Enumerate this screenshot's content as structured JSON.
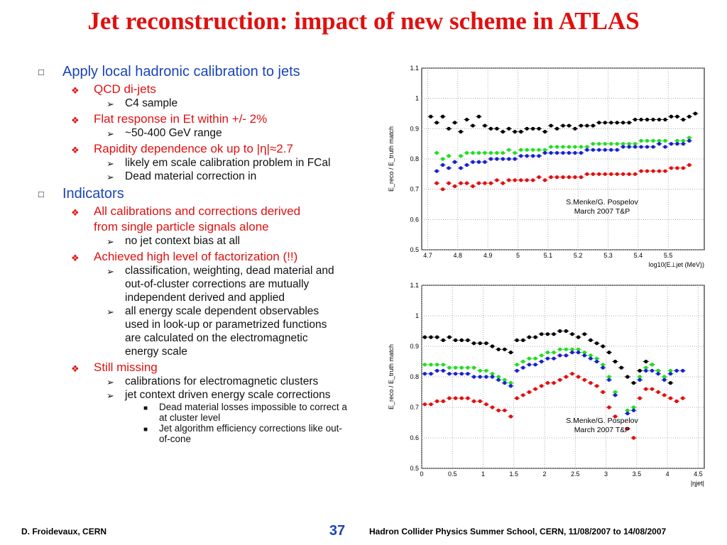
{
  "title": "Jet reconstruction: impact of new scheme in ATLAS",
  "bullets": [
    {
      "level": 1,
      "text": "Apply local hadronic calibration to jets"
    },
    {
      "level": 2,
      "text": "QCD di-jets"
    },
    {
      "level": 3,
      "text": "C4 sample"
    },
    {
      "level": 2,
      "text": "Flat response in Et  within +/- 2%"
    },
    {
      "level": 3,
      "text": "~50-400 GeV range"
    },
    {
      "level": 2,
      "text": "Rapidity dependence ok up to |η|≈2.7"
    },
    {
      "level": 3,
      "text": "likely em scale calibration problem in FCal"
    },
    {
      "level": 3,
      "text": "Dead material correction in"
    },
    {
      "level": 1,
      "text": "Indicators"
    },
    {
      "level": 2,
      "text": "All calibrations and corrections derived"
    },
    {
      "level": 2,
      "text": "from single particle signals alone",
      "cont": true
    },
    {
      "level": 3,
      "text": "no jet context bias at all"
    },
    {
      "level": 2,
      "text": "Achieved high level of factorization (!!)"
    },
    {
      "level": 3,
      "text": "classification, weighting, dead material and"
    },
    {
      "level": 3,
      "text": "out-of-cluster corrections are mutually",
      "cont": true
    },
    {
      "level": 3,
      "text": "independent derived and applied",
      "cont": true
    },
    {
      "level": 3,
      "text": "all energy scale dependent observables"
    },
    {
      "level": 3,
      "text": "used in look-up or parametrized functions",
      "cont": true
    },
    {
      "level": 3,
      "text": "are calculated on the electromagnetic",
      "cont": true
    },
    {
      "level": 3,
      "text": "energy scale",
      "cont": true
    },
    {
      "level": 2,
      "text": "Still missing"
    },
    {
      "level": 3,
      "text": "calibrations for electromagnetic clusters"
    },
    {
      "level": 3,
      "text": "jet context driven energy scale corrections"
    },
    {
      "level": 4,
      "text": "Dead material losses impossible to correct a"
    },
    {
      "level": 4,
      "text": "at cluster level",
      "cont": true
    },
    {
      "level": 4,
      "text": "Jet algorithm efficiency corrections like out-"
    },
    {
      "level": 4,
      "text": "of-cone",
      "cont": true
    }
  ],
  "footer": {
    "left": "D. Froidevaux, CERN",
    "page": "37",
    "right": "Hadron Collider Physics Summer School, CERN, 11/08/2007 to 14/08/2007"
  },
  "chart_data": [
    {
      "type": "scatter",
      "ylabel": "E_reco / E_truth match",
      "xlabel": "log10(E⊥jet (MeV))",
      "annotation": [
        "S.Menke/G. Pospelov",
        "March 2007 T&P"
      ],
      "xlim": [
        4.68,
        5.62
      ],
      "ylim": [
        0.5,
        1.1
      ],
      "xticks": [
        4.7,
        4.8,
        4.9,
        5,
        5.1,
        5.2,
        5.3,
        5.4,
        5.5
      ],
      "yticks": [
        0.5,
        0.6,
        0.7,
        0.8,
        0.9,
        1,
        1.1
      ],
      "grid": true,
      "colors": [
        "#000000",
        "#22dd22",
        "#1a22cc",
        "#e01010"
      ],
      "x": [
        4.71,
        4.73,
        4.75,
        4.77,
        4.79,
        4.81,
        4.83,
        4.85,
        4.87,
        4.89,
        4.91,
        4.93,
        4.95,
        4.97,
        4.99,
        5.01,
        5.03,
        5.05,
        5.07,
        5.09,
        5.11,
        5.13,
        5.15,
        5.17,
        5.19,
        5.21,
        5.23,
        5.25,
        5.27,
        5.29,
        5.31,
        5.33,
        5.35,
        5.37,
        5.39,
        5.41,
        5.43,
        5.45,
        5.47,
        5.49,
        5.51,
        5.53,
        5.55,
        5.57,
        5.59
      ],
      "series": [
        {
          "values": [
            0.94,
            0.92,
            0.94,
            0.9,
            0.92,
            0.89,
            0.93,
            0.91,
            0.94,
            0.91,
            0.9,
            0.9,
            0.89,
            0.9,
            0.89,
            0.89,
            0.9,
            0.9,
            0.9,
            0.89,
            0.91,
            0.9,
            0.91,
            0.91,
            0.9,
            0.91,
            0.91,
            0.91,
            0.92,
            0.92,
            0.92,
            0.92,
            0.92,
            0.92,
            0.93,
            0.93,
            0.93,
            0.93,
            0.93,
            0.93,
            0.94,
            0.94,
            0.93,
            0.94,
            0.95
          ]
        },
        {
          "values": [
            null,
            0.82,
            0.8,
            0.81,
            0.79,
            0.81,
            0.82,
            0.82,
            0.82,
            0.82,
            0.82,
            0.82,
            0.82,
            0.83,
            0.82,
            0.83,
            0.83,
            0.83,
            0.83,
            0.83,
            0.84,
            0.84,
            0.84,
            0.84,
            0.84,
            0.84,
            0.84,
            0.85,
            0.85,
            0.85,
            0.85,
            0.85,
            0.85,
            0.85,
            0.85,
            0.86,
            0.86,
            0.86,
            0.86,
            0.86,
            0.85,
            0.86,
            0.86,
            0.87,
            null
          ]
        },
        {
          "values": [
            null,
            0.76,
            0.78,
            0.77,
            0.79,
            0.77,
            0.78,
            0.79,
            0.79,
            0.79,
            0.8,
            0.8,
            0.8,
            0.8,
            0.8,
            0.81,
            0.81,
            0.81,
            0.81,
            0.82,
            0.82,
            0.82,
            0.82,
            0.82,
            0.82,
            0.82,
            0.83,
            0.83,
            0.83,
            0.83,
            0.83,
            0.83,
            0.84,
            0.84,
            0.84,
            0.84,
            0.84,
            0.84,
            0.85,
            0.84,
            0.85,
            0.85,
            0.85,
            0.86,
            null
          ]
        },
        {
          "values": [
            null,
            0.72,
            0.7,
            0.72,
            0.71,
            0.72,
            0.72,
            0.71,
            0.72,
            0.72,
            0.72,
            0.73,
            0.72,
            0.73,
            0.73,
            0.73,
            0.73,
            0.73,
            0.74,
            0.73,
            0.74,
            0.74,
            0.74,
            0.74,
            0.74,
            0.74,
            0.75,
            0.75,
            0.75,
            0.75,
            0.75,
            0.75,
            0.75,
            0.75,
            0.75,
            0.76,
            0.76,
            0.76,
            0.76,
            0.76,
            0.77,
            0.77,
            0.77,
            0.78,
            null
          ]
        }
      ]
    },
    {
      "type": "scatter",
      "ylabel": "E_reco / E_truth match",
      "xlabel": "|ηjet|",
      "annotation": [
        "S.Menke/G. Pospelov",
        "March 2007 T&P"
      ],
      "xlim": [
        0,
        4.6
      ],
      "ylim": [
        0.5,
        1.1
      ],
      "xticks": [
        0,
        0.5,
        1,
        1.5,
        2,
        2.5,
        3,
        3.5,
        4,
        4.5
      ],
      "yticks": [
        0.5,
        0.6,
        0.7,
        0.8,
        0.9,
        1,
        1.1
      ],
      "grid": true,
      "colors": [
        "#000000",
        "#22dd22",
        "#1a22cc",
        "#e01010"
      ],
      "x": [
        0.05,
        0.15,
        0.25,
        0.35,
        0.45,
        0.55,
        0.65,
        0.75,
        0.85,
        0.95,
        1.05,
        1.15,
        1.25,
        1.35,
        1.45,
        1.55,
        1.65,
        1.75,
        1.85,
        1.95,
        2.05,
        2.15,
        2.25,
        2.35,
        2.45,
        2.55,
        2.65,
        2.75,
        2.85,
        2.95,
        3.05,
        3.15,
        3.25,
        3.35,
        3.45,
        3.55,
        3.65,
        3.75,
        3.85,
        3.95,
        4.05,
        4.15,
        4.25
      ],
      "series": [
        {
          "values": [
            0.93,
            0.93,
            0.93,
            0.92,
            0.93,
            0.92,
            0.92,
            0.92,
            0.91,
            0.91,
            0.91,
            0.9,
            0.89,
            0.89,
            0.88,
            0.92,
            0.92,
            0.93,
            0.93,
            0.94,
            0.94,
            0.94,
            0.95,
            0.95,
            0.94,
            0.93,
            0.94,
            0.92,
            0.91,
            0.9,
            0.88,
            0.85,
            0.83,
            0.8,
            0.78,
            0.82,
            0.85,
            0.84,
            0.82,
            0.8,
            0.78,
            null,
            null
          ]
        },
        {
          "values": [
            0.84,
            0.84,
            0.84,
            0.84,
            0.83,
            0.83,
            0.83,
            0.83,
            0.83,
            0.82,
            0.82,
            0.81,
            0.8,
            0.79,
            0.78,
            0.84,
            0.85,
            0.86,
            0.86,
            0.87,
            0.88,
            0.88,
            0.89,
            0.89,
            0.89,
            0.89,
            0.88,
            0.87,
            0.86,
            0.84,
            0.8,
            0.75,
            null,
            0.69,
            0.7,
            0.8,
            0.83,
            0.84,
            0.82,
            0.8,
            0.82,
            null,
            null
          ]
        },
        {
          "values": [
            0.81,
            0.81,
            0.82,
            0.82,
            0.81,
            0.81,
            0.81,
            0.81,
            0.8,
            0.8,
            0.8,
            0.8,
            0.79,
            0.78,
            0.77,
            0.82,
            0.83,
            0.84,
            0.84,
            0.85,
            0.86,
            0.86,
            0.87,
            0.87,
            0.88,
            0.88,
            0.87,
            0.86,
            0.85,
            0.83,
            0.79,
            0.74,
            null,
            0.68,
            0.69,
            0.79,
            0.82,
            0.82,
            0.81,
            0.79,
            0.81,
            0.82,
            0.82
          ]
        },
        {
          "values": [
            0.71,
            0.71,
            0.72,
            0.72,
            0.73,
            0.73,
            0.73,
            0.73,
            0.72,
            0.72,
            0.71,
            0.7,
            0.69,
            0.69,
            0.67,
            0.73,
            0.74,
            0.75,
            0.76,
            0.77,
            0.78,
            0.78,
            0.79,
            0.8,
            0.81,
            0.8,
            0.79,
            0.78,
            0.77,
            0.75,
            0.7,
            0.67,
            null,
            0.63,
            0.6,
            0.73,
            0.76,
            0.76,
            0.75,
            0.74,
            0.73,
            0.72,
            0.73
          ]
        }
      ]
    }
  ]
}
